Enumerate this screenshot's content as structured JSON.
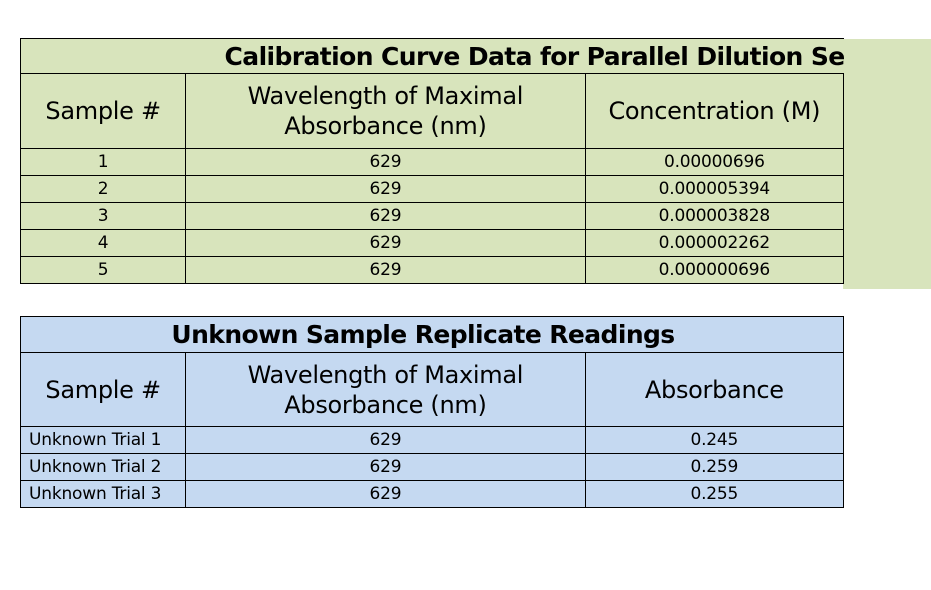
{
  "calibration": {
    "title": "Calibration Curve Data for Parallel Dilution Set",
    "headers": {
      "sample": "Sample #",
      "wavelength": "Wavelength of Maximal Absorbance (nm)",
      "concentration": "Concentration (M)"
    },
    "rows": [
      {
        "sample": "1",
        "wavelength": "629",
        "concentration": "0.00000696"
      },
      {
        "sample": "2",
        "wavelength": "629",
        "concentration": "0.000005394"
      },
      {
        "sample": "3",
        "wavelength": "629",
        "concentration": "0.000003828"
      },
      {
        "sample": "4",
        "wavelength": "629",
        "concentration": "0.000002262"
      },
      {
        "sample": "5",
        "wavelength": "629",
        "concentration": "0.000000696"
      }
    ],
    "fill_color": "#d8e4bc"
  },
  "unknown": {
    "title": "Unknown Sample Replicate Readings",
    "headers": {
      "sample": "Sample #",
      "wavelength": "Wavelength of Maximal Absorbance (nm)",
      "absorbance": "Absorbance"
    },
    "rows": [
      {
        "sample": "Unknown Trial 1",
        "wavelength": "629",
        "absorbance": "0.245"
      },
      {
        "sample": "Unknown Trial 2",
        "wavelength": "629",
        "absorbance": "0.259"
      },
      {
        "sample": "Unknown Trial 3",
        "wavelength": "629",
        "absorbance": "0.255"
      }
    ],
    "fill_color": "#c5d9f1"
  }
}
